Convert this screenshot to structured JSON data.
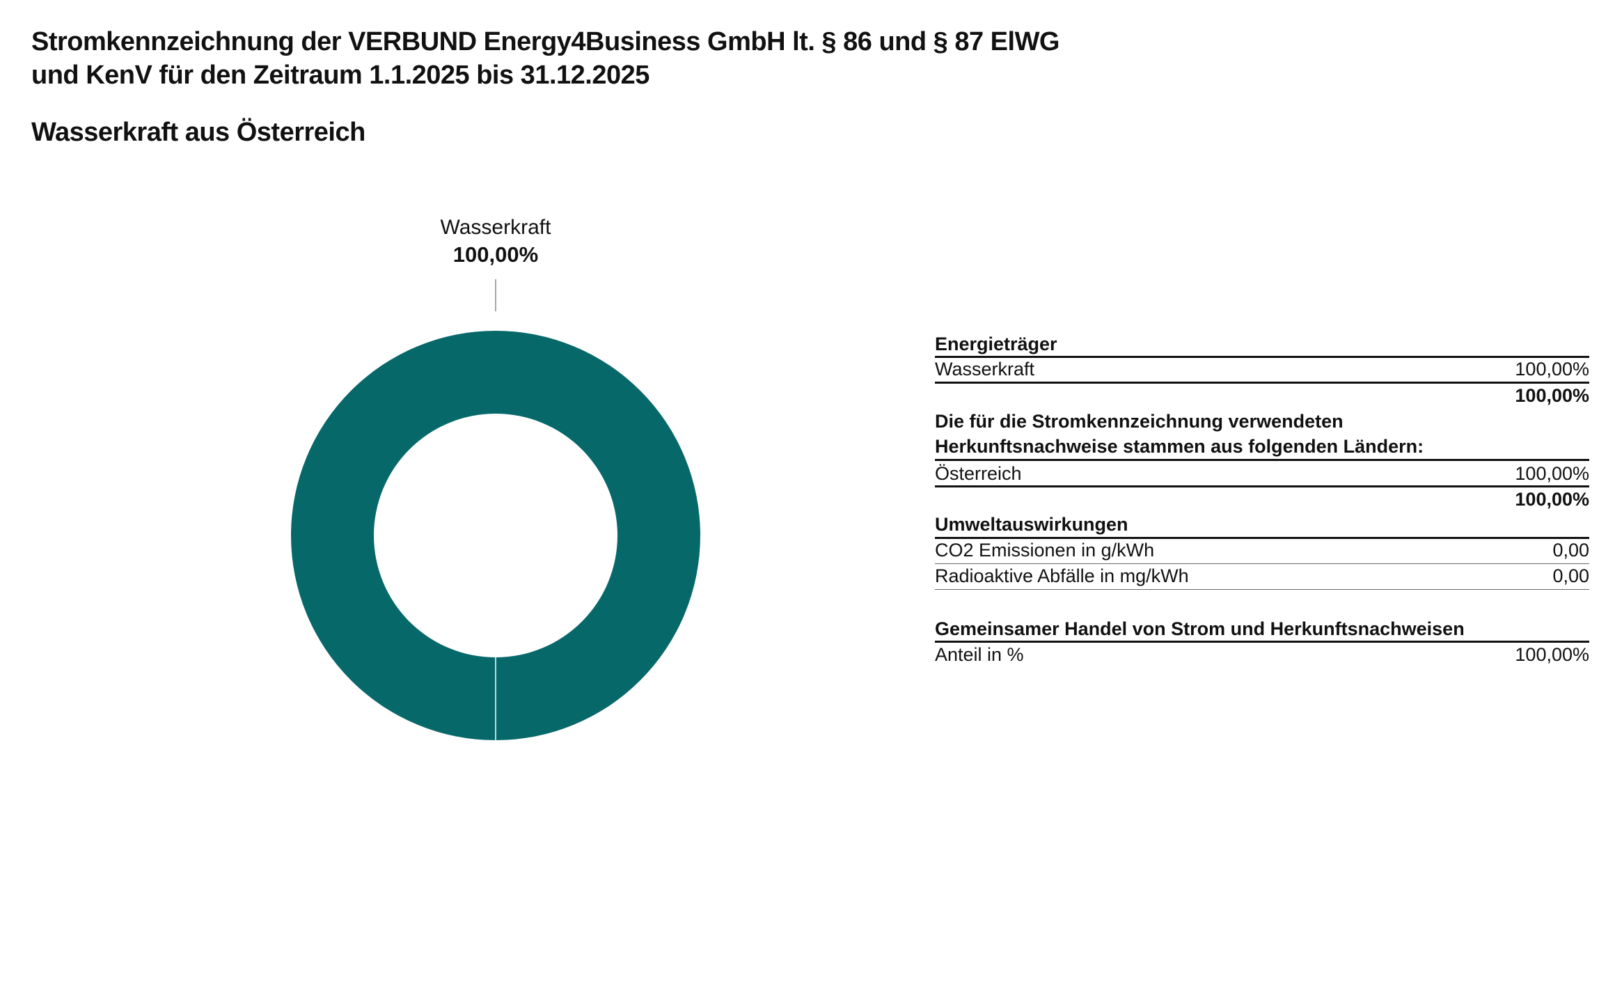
{
  "header": {
    "title_line1": "Stromkennzeichnung der VERBUND Energy4Business GmbH lt. § 86 und § 87 ElWG",
    "title_line2": "und KenV für den Zeitraum 1.1.2025 bis 31.12.2025",
    "subtitle": "Wasserkraft aus Österreich"
  },
  "chart_data": {
    "type": "pie",
    "variant": "donut",
    "categories": [
      "Wasserkraft"
    ],
    "values": [
      100.0
    ],
    "labels": [
      "100,00%"
    ],
    "colors": [
      "#07686a"
    ]
  },
  "table": {
    "energy_heading": "Energieträger",
    "energy_rows": [
      {
        "label": "Wasserkraft",
        "value": "100,00%"
      }
    ],
    "energy_total": "100,00%",
    "origin_heading_line1": "Die für die Stromkennzeichnung verwendeten",
    "origin_heading_line2": "Herkunftsnachweise stammen aus folgenden Ländern:",
    "origin_rows": [
      {
        "label": "Österreich",
        "value": "100,00%"
      }
    ],
    "origin_total": "100,00%",
    "env_heading": "Umweltauswirkungen",
    "env_rows": [
      {
        "label": "CO2 Emissionen in g/kWh",
        "value": "0,00"
      },
      {
        "label": "Radioaktive Abfälle in mg/kWh",
        "value": "0,00"
      }
    ],
    "trade_heading": "Gemeinsamer Handel von Strom und Herkunftsnachweisen",
    "trade_rows": [
      {
        "label": "Anteil in %",
        "value": "100,00%"
      }
    ]
  }
}
